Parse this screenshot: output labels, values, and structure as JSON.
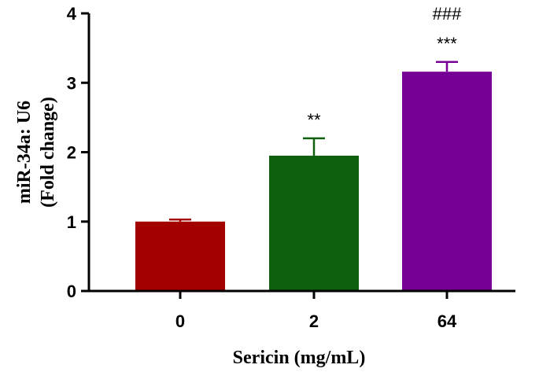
{
  "chart_data": {
    "type": "bar",
    "categories": [
      "0",
      "2",
      "64"
    ],
    "values": [
      1.0,
      1.95,
      3.16
    ],
    "errors": [
      0.03,
      0.25,
      0.14
    ],
    "colors": [
      "#A30000",
      "#0E5F0E",
      "#760095"
    ],
    "annotations": [
      {
        "category": "2",
        "lines": [
          "**"
        ]
      },
      {
        "category": "64",
        "lines": [
          "###",
          "***"
        ]
      }
    ],
    "xlabel": "Sericin (mg/mL)",
    "ylabel_lines": [
      "miR-34a: U6",
      "(Fold change)"
    ],
    "ylim": [
      0,
      4
    ],
    "yticks": [
      0,
      1,
      2,
      3,
      4
    ],
    "grid": false
  }
}
